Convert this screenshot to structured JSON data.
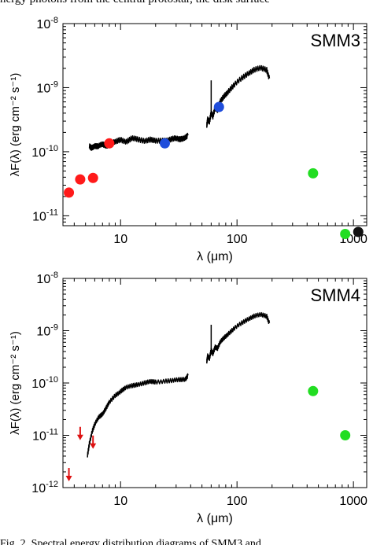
{
  "page": {
    "top_text": "nergy photons from the central protostar, the disk surface",
    "caption": "Fig. 2.  Spectral energy distribution diagrams of SMM3 and"
  },
  "chart_data": [
    {
      "type": "scatter",
      "title": "SMM3",
      "xlabel": "λ (μm)",
      "ylabel": "λF(λ) (erg cm⁻² s⁻¹)",
      "xscale": "log",
      "yscale": "log",
      "xlim": [
        3.2,
        1300
      ],
      "ylim": [
        7e-12,
        1e-08
      ],
      "xticklabels": [
        {
          "value": 10,
          "label": "10"
        },
        {
          "value": 100,
          "label": "100"
        },
        {
          "value": 1000,
          "label": "1000"
        }
      ],
      "yticklabels": [
        {
          "value": 1e-08,
          "base": "10",
          "exp": "-8"
        },
        {
          "value": 1e-09,
          "base": "10",
          "exp": "-9"
        },
        {
          "value": 1e-10,
          "base": "10",
          "exp": "-10"
        },
        {
          "value": 1e-11,
          "base": "10",
          "exp": "-11"
        }
      ],
      "spectrum": [
        {
          "x": [
            5.4,
            5.6,
            6.0,
            6.4,
            7.0,
            7.6,
            8.2,
            9.0,
            10.0,
            11.2,
            12.5,
            14.0,
            16.0,
            18.0,
            20.0,
            23.0,
            26.0,
            29.0,
            32.0,
            35.0,
            38.0
          ],
          "y": [
            1.2e-10,
            1.15e-10,
            1.25e-10,
            1.2e-10,
            1.3e-10,
            1.25e-10,
            1.35e-10,
            1.4e-10,
            1.55e-10,
            1.45e-10,
            1.6e-10,
            1.55e-10,
            1.5e-10,
            1.55e-10,
            1.45e-10,
            1.5e-10,
            1.55e-10,
            1.6e-10,
            1.55e-10,
            1.65e-10,
            1.8e-10
          ]
        },
        {
          "x": [
            55,
            56,
            58,
            60,
            62,
            65,
            68,
            72,
            78,
            85,
            95,
            110,
            125,
            140,
            160,
            180,
            190
          ],
          "y": [
            2.5e-10,
            3.2e-10,
            3e-10,
            4e-10,
            3.5e-10,
            5e-10,
            4.5e-10,
            6e-10,
            7.5e-10,
            9e-10,
            1.1e-09,
            1.4e-09,
            1.7e-09,
            1.9e-09,
            2e-09,
            1.9e-09,
            1.4e-09
          ]
        }
      ],
      "spike": {
        "x": 60,
        "y_low": 3.5e-10,
        "y_high": 1.3e-09
      },
      "series": [
        {
          "name": "",
          "color": "#ff1a1a",
          "points": [
            {
              "x": 3.6,
              "y": 2.3e-11
            },
            {
              "x": 4.5,
              "y": 3.7e-11
            },
            {
              "x": 5.8,
              "y": 3.9e-11
            },
            {
              "x": 8.0,
              "y": 1.35e-10
            }
          ]
        },
        {
          "name": "",
          "color": "#1f4ddb",
          "points": [
            {
              "x": 24,
              "y": 1.35e-10
            },
            {
              "x": 70,
              "y": 5e-10
            }
          ]
        },
        {
          "name": "",
          "color": "#22dd22",
          "points": [
            {
              "x": 450,
              "y": 4.6e-11
            },
            {
              "x": 850,
              "y": 5.2e-12
            }
          ]
        },
        {
          "name": "",
          "color": "#111111",
          "points": [
            {
              "x": 1100,
              "y": 5.6e-12
            }
          ]
        }
      ],
      "upper_limits": [],
      "grid": false
    },
    {
      "type": "scatter",
      "title": "SMM4",
      "xlabel": "λ (μm)",
      "ylabel": "λF(λ) (erg cm⁻² s⁻¹)",
      "xscale": "log",
      "yscale": "log",
      "xlim": [
        3.2,
        1300
      ],
      "ylim": [
        1e-12,
        1e-08
      ],
      "xticklabels": [
        {
          "value": 10,
          "label": "10"
        },
        {
          "value": 100,
          "label": "100"
        },
        {
          "value": 1000,
          "label": "1000"
        }
      ],
      "yticklabels": [
        {
          "value": 1e-08,
          "base": "10",
          "exp": "-8"
        },
        {
          "value": 1e-09,
          "base": "10",
          "exp": "-9"
        },
        {
          "value": 1e-10,
          "base": "10",
          "exp": "-10"
        },
        {
          "value": 1e-11,
          "base": "10",
          "exp": "-11"
        },
        {
          "value": 1e-12,
          "base": "10",
          "exp": "-12"
        }
      ],
      "spectrum": [
        {
          "x": [
            5.2,
            5.4,
            5.7,
            6.0,
            6.5,
            7.0,
            7.5,
            8.0,
            9.0,
            10.0,
            11.0,
            12.5,
            14.0,
            16.0,
            18.0,
            20.0,
            24.0,
            28.0,
            32.0,
            36.0,
            38.0
          ],
          "y": [
            4e-12,
            7e-12,
            1.2e-11,
            1.6e-11,
            2.2e-11,
            2.6e-11,
            3.3e-11,
            4.2e-11,
            5.8e-11,
            7e-11,
            8e-11,
            8.8e-11,
            9.5e-11,
            1e-10,
            1.05e-10,
            1.05e-10,
            1.1e-10,
            1.1e-10,
            1.15e-10,
            1.2e-10,
            1.4e-10
          ]
        },
        {
          "x": [
            55,
            56,
            58,
            60,
            62,
            65,
            68,
            72,
            78,
            85,
            95,
            110,
            125,
            140,
            160,
            180,
            190
          ],
          "y": [
            2.5e-10,
            3.3e-10,
            3e-10,
            4.2e-10,
            3.6e-10,
            5e-10,
            4.6e-10,
            6e-10,
            7.5e-10,
            9e-10,
            1.1e-09,
            1.4e-09,
            1.7e-09,
            1.9e-09,
            2e-09,
            1.9e-09,
            1.4e-09
          ]
        }
      ],
      "spike": {
        "x": 60,
        "y_low": 3.5e-10,
        "y_high": 1.3e-09
      },
      "series": [
        {
          "name": "",
          "color": "#22dd22",
          "points": [
            {
              "x": 450,
              "y": 7e-11
            },
            {
              "x": 850,
              "y": 1e-11
            }
          ]
        }
      ],
      "upper_limits": [
        {
          "x": 3.6,
          "y": 1.8e-12,
          "color": "#dd1111"
        },
        {
          "x": 4.5,
          "y": 1.1e-11,
          "color": "#dd1111"
        },
        {
          "x": 5.8,
          "y": 7.5e-12,
          "color": "#dd1111"
        }
      ],
      "grid": false
    }
  ]
}
